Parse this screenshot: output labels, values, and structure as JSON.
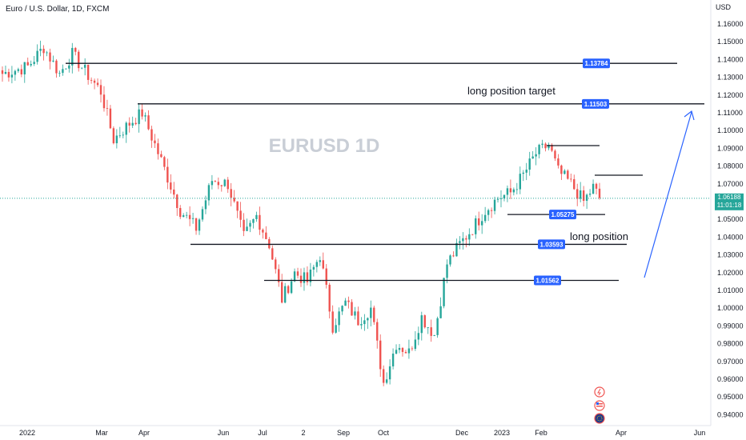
{
  "chart_data": {
    "type": "candlestick",
    "symbol_title": "Euro / U.S. Dollar, 1D, FXCM",
    "watermark": "EURUSD  1D",
    "currency_label": "USD",
    "y_ticks": [
      "1.16000",
      "1.15000",
      "1.14000",
      "1.13000",
      "1.12000",
      "1.11000",
      "1.10000",
      "1.09000",
      "1.08000",
      "1.07000",
      "1.06000",
      "1.05000",
      "1.04000",
      "1.03000",
      "1.02000",
      "1.01000",
      "1.00000",
      "0.99000",
      "0.98000",
      "0.97000",
      "0.96000",
      "0.95000",
      "0.94000"
    ],
    "ylim": [
      0.938,
      1.165
    ],
    "x_ticks": [
      "2022",
      "Mar",
      "Apr",
      "Jun",
      "Jul",
      "2",
      "Sep",
      "Oct",
      "Dec",
      "2023",
      "Feb",
      "Apr",
      "Jun"
    ],
    "current_price": "1.06188",
    "countdown": "11:01:18",
    "levels": [
      {
        "label": "1.13784",
        "value": 1.13784
      },
      {
        "label": "1.11503",
        "value": 1.11503
      },
      {
        "label": "1.05275",
        "value": 1.05275
      },
      {
        "label": "1.03593",
        "value": 1.03593
      },
      {
        "label": "1.01562",
        "value": 1.01562
      }
    ],
    "annotations": [
      {
        "text": "long position target"
      },
      {
        "text": "long position"
      }
    ],
    "colors": {
      "up": "#26a69a",
      "down": "#ef5350",
      "line": "#131722",
      "badge": "#2962ff",
      "arrow": "#2962ff"
    },
    "anchors": [
      {
        "i": 0,
        "v": 1.132
      },
      {
        "i": 8,
        "v": 1.136
      },
      {
        "i": 13,
        "v": 1.147
      },
      {
        "i": 18,
        "v": 1.132
      },
      {
        "i": 22,
        "v": 1.143
      },
      {
        "i": 27,
        "v": 1.131
      },
      {
        "i": 31,
        "v": 1.122
      },
      {
        "i": 35,
        "v": 1.095
      },
      {
        "i": 40,
        "v": 1.104
      },
      {
        "i": 44,
        "v": 1.11
      },
      {
        "i": 50,
        "v": 1.083
      },
      {
        "i": 56,
        "v": 1.055
      },
      {
        "i": 61,
        "v": 1.045
      },
      {
        "i": 66,
        "v": 1.072
      },
      {
        "i": 71,
        "v": 1.07
      },
      {
        "i": 76,
        "v": 1.04
      },
      {
        "i": 80,
        "v": 1.052
      },
      {
        "i": 84,
        "v": 1.036
      },
      {
        "i": 88,
        "v": 1.005
      },
      {
        "i": 92,
        "v": 1.02
      },
      {
        "i": 96,
        "v": 1.015
      },
      {
        "i": 100,
        "v": 1.03
      },
      {
        "i": 104,
        "v": 0.99
      },
      {
        "i": 108,
        "v": 1.003
      },
      {
        "i": 112,
        "v": 0.993
      },
      {
        "i": 116,
        "v": 1.0
      },
      {
        "i": 120,
        "v": 0.958
      },
      {
        "i": 124,
        "v": 0.98
      },
      {
        "i": 128,
        "v": 0.975
      },
      {
        "i": 132,
        "v": 0.995
      },
      {
        "i": 136,
        "v": 0.985
      },
      {
        "i": 140,
        "v": 1.025
      },
      {
        "i": 144,
        "v": 1.036
      },
      {
        "i": 148,
        "v": 1.045
      },
      {
        "i": 152,
        "v": 1.055
      },
      {
        "i": 156,
        "v": 1.062
      },
      {
        "i": 160,
        "v": 1.065
      },
      {
        "i": 164,
        "v": 1.075
      },
      {
        "i": 168,
        "v": 1.087
      },
      {
        "i": 172,
        "v": 1.092
      },
      {
        "i": 175,
        "v": 1.077
      },
      {
        "i": 179,
        "v": 1.07
      },
      {
        "i": 183,
        "v": 1.06
      },
      {
        "i": 186,
        "v": 1.068
      },
      {
        "i": 188,
        "v": 1.062
      }
    ]
  }
}
